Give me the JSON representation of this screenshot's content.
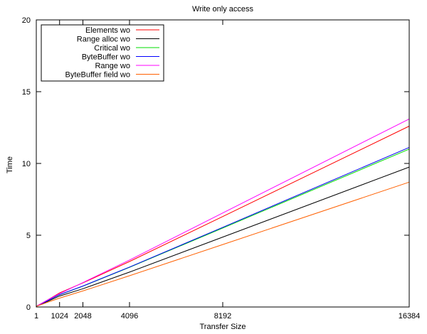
{
  "chart_data": {
    "type": "line",
    "title": "Write only access",
    "xlabel": "Transfer Size",
    "ylabel": "Time",
    "xlim": [
      1,
      16384
    ],
    "ylim": [
      0,
      20
    ],
    "xticks": [
      1,
      1024,
      2048,
      4096,
      8192,
      16384
    ],
    "yticks": [
      0,
      5,
      10,
      15,
      20
    ],
    "grid": false,
    "legend_position": "top-left",
    "series": [
      {
        "name": "Elements wo",
        "color": "#ff0000",
        "points": [
          [
            1,
            0.05
          ],
          [
            512,
            0.5
          ],
          [
            1024,
            0.98
          ],
          [
            2048,
            1.68
          ],
          [
            4096,
            3.17
          ],
          [
            8192,
            6.3
          ],
          [
            16384,
            12.6
          ]
        ]
      },
      {
        "name": "Range alloc wo",
        "color": "#000000",
        "points": [
          [
            1,
            0.05
          ],
          [
            512,
            0.4
          ],
          [
            1024,
            0.76
          ],
          [
            2048,
            1.27
          ],
          [
            4096,
            2.43
          ],
          [
            8192,
            4.87
          ],
          [
            16384,
            9.75
          ]
        ]
      },
      {
        "name": "Critical wo",
        "color": "#00dd00",
        "points": [
          [
            1,
            0.05
          ],
          [
            512,
            0.45
          ],
          [
            1024,
            0.85
          ],
          [
            2048,
            1.45
          ],
          [
            4096,
            2.76
          ],
          [
            8192,
            5.5
          ],
          [
            16384,
            11.0
          ]
        ]
      },
      {
        "name": "ByteBuffer wo",
        "color": "#0000ff",
        "points": [
          [
            1,
            0.05
          ],
          [
            512,
            0.45
          ],
          [
            1024,
            0.86
          ],
          [
            2048,
            1.46
          ],
          [
            4096,
            2.78
          ],
          [
            8192,
            5.55
          ],
          [
            16384,
            11.12
          ]
        ]
      },
      {
        "name": "Range wo",
        "color": "#ff00ff",
        "points": [
          [
            1,
            0.05
          ],
          [
            512,
            0.5
          ],
          [
            1024,
            0.93
          ],
          [
            2048,
            1.7
          ],
          [
            4096,
            3.27
          ],
          [
            8192,
            6.55
          ],
          [
            16384,
            13.1
          ]
        ]
      },
      {
        "name": "ByteBuffer field wo",
        "color": "#ff6000",
        "points": [
          [
            1,
            0.04
          ],
          [
            512,
            0.34
          ],
          [
            1024,
            0.62
          ],
          [
            2048,
            1.12
          ],
          [
            4096,
            2.18
          ],
          [
            8192,
            4.35
          ],
          [
            16384,
            8.7
          ]
        ]
      }
    ]
  }
}
